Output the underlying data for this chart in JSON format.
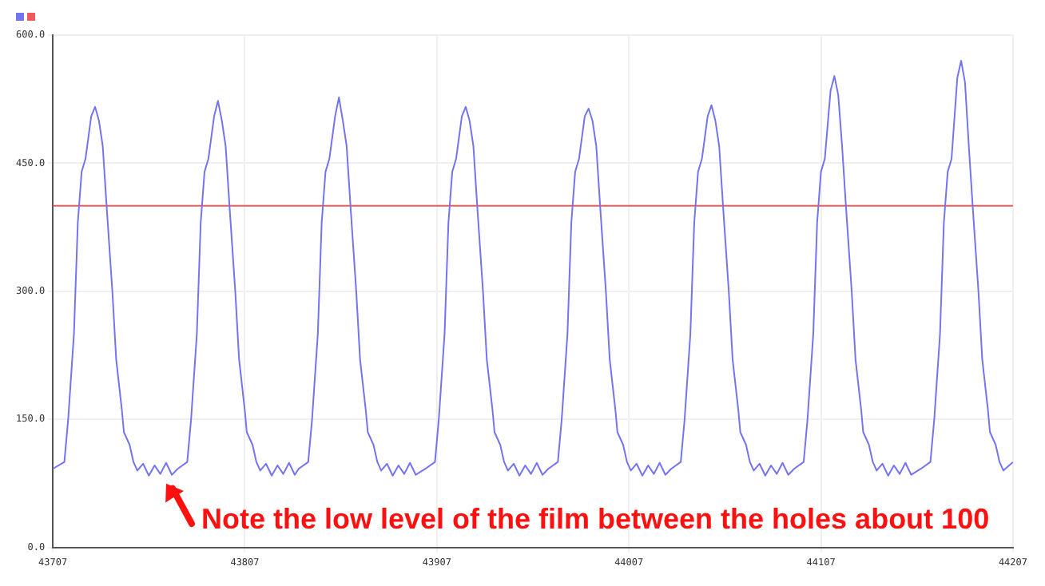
{
  "chart_data": {
    "type": "line",
    "series": [
      {
        "color": "#7474f0",
        "x": [
          43707,
          43713,
          43715,
          43718,
          43720,
          43722,
          43724,
          43727,
          43729,
          43731,
          43733,
          43735,
          43738,
          43740,
          43743,
          43744,
          43747,
          43749,
          43751,
          43754,
          43757,
          43760,
          43763,
          43766,
          43769,
          43772,
          43777,
          43779,
          43782,
          43784,
          43786,
          43788,
          43791,
          43793,
          43795,
          43797,
          43799,
          43802,
          43804,
          43807,
          43808,
          43811,
          43813,
          43815,
          43818,
          43821,
          43824,
          43827,
          43830,
          43833,
          43835,
          43840,
          43842,
          43845,
          43847,
          43849,
          43851,
          43854,
          43856,
          43858,
          43860,
          43862,
          43865,
          43867,
          43870,
          43871,
          43874,
          43876,
          43878,
          43881,
          43884,
          43887,
          43890,
          43893,
          43896,
          43901,
          43906,
          43908,
          43911,
          43913,
          43915,
          43917,
          43920,
          43922,
          43924,
          43926,
          43928,
          43931,
          43933,
          43936,
          43937,
          43940,
          43942,
          43944,
          43947,
          43950,
          43953,
          43956,
          43959,
          43962,
          43965,
          43970,
          43972,
          43975,
          43977,
          43979,
          43981,
          43984,
          43986,
          43988,
          43990,
          43992,
          43995,
          43997,
          44000,
          44001,
          44004,
          44006,
          44008,
          44011,
          44014,
          44017,
          44020,
          44023,
          44026,
          44029,
          44034,
          44036,
          44039,
          44041,
          44043,
          44045,
          44048,
          44050,
          44052,
          44054,
          44056,
          44059,
          44061,
          44064,
          44065,
          44068,
          44070,
          44072,
          44075,
          44078,
          44081,
          44084,
          44087,
          44090,
          44093,
          44098,
          44100,
          44103,
          44105,
          44107,
          44109,
          44112,
          44114,
          44116,
          44118,
          44120,
          44123,
          44125,
          44128,
          44129,
          44132,
          44134,
          44136,
          44139,
          44142,
          44145,
          44148,
          44151,
          44154,
          44159,
          44164,
          44166,
          44169,
          44171,
          44173,
          44175,
          44178,
          44180,
          44182,
          44184,
          44186,
          44189,
          44191,
          44194,
          44195,
          44198,
          44200,
          44202,
          44207
        ],
        "values": [
          92,
          100,
          150,
          250,
          380,
          440,
          455,
          505,
          516,
          500,
          470,
          400,
          300,
          220,
          160,
          135,
          120,
          100,
          90,
          98,
          84,
          96,
          86,
          99,
          85,
          92,
          100,
          150,
          250,
          380,
          440,
          455,
          505,
          523,
          500,
          470,
          400,
          300,
          220,
          160,
          135,
          120,
          100,
          90,
          98,
          84,
          96,
          86,
          99,
          85,
          92,
          100,
          150,
          250,
          380,
          440,
          455,
          505,
          527,
          500,
          470,
          400,
          300,
          220,
          160,
          135,
          120,
          100,
          90,
          98,
          84,
          96,
          86,
          99,
          85,
          92,
          100,
          150,
          250,
          380,
          440,
          455,
          505,
          516,
          500,
          470,
          400,
          300,
          220,
          160,
          135,
          120,
          100,
          90,
          98,
          84,
          96,
          86,
          99,
          85,
          92,
          100,
          150,
          250,
          380,
          440,
          455,
          505,
          514,
          500,
          470,
          400,
          300,
          220,
          160,
          135,
          120,
          100,
          90,
          98,
          84,
          96,
          86,
          99,
          85,
          92,
          100,
          150,
          250,
          380,
          440,
          455,
          505,
          518,
          500,
          470,
          400,
          300,
          220,
          160,
          135,
          120,
          100,
          90,
          98,
          84,
          96,
          86,
          99,
          85,
          92,
          100,
          150,
          250,
          380,
          440,
          455,
          535,
          552,
          530,
          470,
          400,
          300,
          220,
          160,
          135,
          120,
          100,
          90,
          98,
          84,
          96,
          86,
          99,
          85,
          92,
          100,
          150,
          250,
          380,
          440,
          455,
          550,
          570,
          545,
          470,
          400,
          300,
          220,
          160,
          135,
          120,
          100,
          90,
          100
        ]
      },
      {
        "color": "#f05a5a",
        "x": [
          43707,
          44207
        ],
        "values": [
          400,
          400
        ]
      }
    ],
    "xlim": [
      43707,
      44207
    ],
    "xticks": [
      43707,
      43807,
      43907,
      44007,
      44107,
      44207
    ],
    "ylim": [
      0,
      600
    ],
    "yticks": [
      {
        "value": 0,
        "label": "0.0"
      },
      {
        "value": 150,
        "label": "150.0"
      },
      {
        "value": 300,
        "label": "300.0"
      },
      {
        "value": 450,
        "label": "450.0"
      },
      {
        "value": 600,
        "label": "600.0"
      }
    ],
    "grid": true,
    "marker": "none",
    "line_style": "solid",
    "annotations": [
      {
        "text": "Note the low level of the film between the holes about 100",
        "x": 43766,
        "y": 86
      }
    ]
  }
}
